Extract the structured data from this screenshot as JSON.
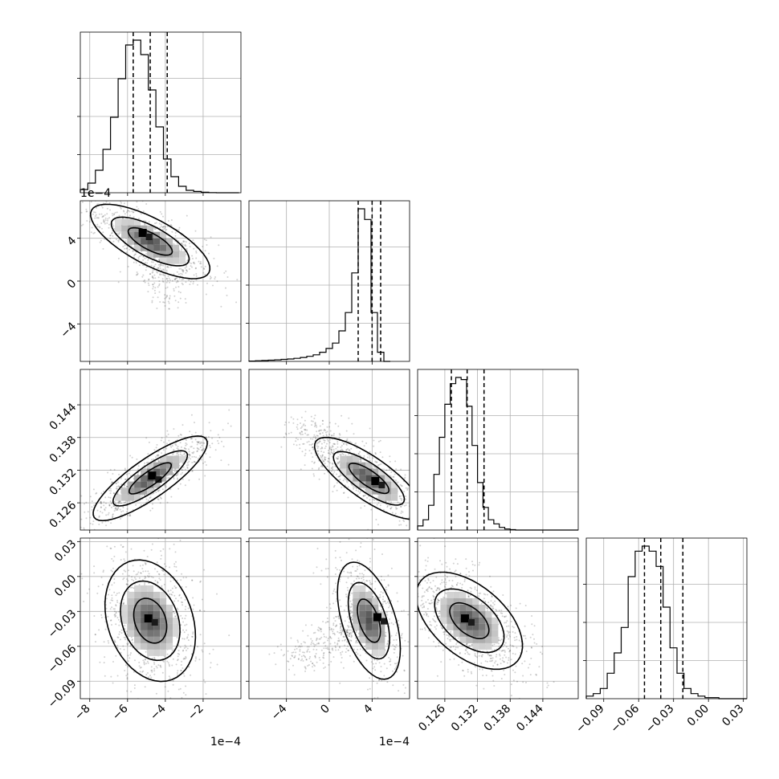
{
  "chart_data": {
    "type": "corner",
    "grid": true,
    "parameters": [
      {
        "range": [
          -0.00085,
          0.0
        ],
        "ticks": [
          -0.0008,
          -0.0006,
          -0.0004,
          -0.0002
        ],
        "tick_labels": [
          "−8",
          "−6",
          "−4",
          "−2"
        ],
        "offset_text": "1e−4"
      },
      {
        "range": [
          -0.00075,
          0.00075
        ],
        "ticks": [
          -0.0004,
          0.0,
          0.0004
        ],
        "tick_labels": [
          "−4",
          "0",
          "4"
        ],
        "offset_text": "1e−4"
      },
      {
        "range": [
          0.121,
          0.1505
        ],
        "ticks": [
          0.126,
          0.132,
          0.138,
          0.144
        ],
        "tick_labels": [
          "0.126",
          "0.132",
          "0.138",
          "0.144"
        ],
        "offset_text": ""
      },
      {
        "range": [
          -0.105,
          0.033
        ],
        "ticks": [
          -0.09,
          -0.06,
          -0.03,
          0.0,
          0.03
        ],
        "tick_labels": [
          "−0.09",
          "−0.06",
          "−0.03",
          "0.00",
          "0.03"
        ],
        "offset_text": ""
      }
    ],
    "marginal_histograms": [
      {
        "bin_start": -0.00085,
        "bin_width": 4e-05,
        "counts": [
          2,
          6,
          14,
          27,
          47,
          71,
          92,
          95,
          86,
          64,
          41,
          21,
          10,
          4,
          1.5,
          0.8,
          0.3,
          0.1,
          0,
          0,
          0
        ],
        "quantiles": [
          -0.00057,
          -0.00048,
          -0.00039
        ]
      },
      {
        "bin_start": -0.00075,
        "bin_width": 6e-05,
        "counts": [
          0.2,
          0.4,
          0.6,
          0.8,
          1,
          1.3,
          1.6,
          2,
          2.6,
          3.3,
          4.3,
          6,
          8.5,
          12,
          20,
          32,
          58,
          100,
          93,
          32,
          6,
          0
        ],
        "quantiles": [
          0.00027,
          0.0004,
          0.00048
        ]
      },
      {
        "bin_start": 0.121,
        "bin_width": 0.001,
        "counts": [
          2,
          5,
          12,
          27,
          45,
          61,
          71,
          74,
          73,
          60,
          41,
          23,
          11,
          5,
          3,
          1.3,
          0.5,
          0.2,
          0,
          0,
          0,
          0,
          0,
          0,
          0,
          0,
          0,
          0,
          0,
          0
        ],
        "quantiles": [
          0.1272,
          0.1301,
          0.1332
        ]
      },
      {
        "bin_start": -0.105,
        "bin_width": 0.006,
        "counts": [
          0.5,
          1,
          2,
          5,
          9,
          14,
          24,
          29,
          30,
          29,
          26,
          18,
          10,
          5,
          2,
          1,
          0.5,
          0.2,
          0.2,
          0,
          0,
          0,
          0
        ],
        "quantiles": [
          -0.055,
          -0.041,
          -0.022
        ]
      }
    ],
    "joint_distributions": [
      {
        "x_param": 0,
        "y_param": 1,
        "center": [
          -0.00048,
          0.00037
        ],
        "peak": [
          -0.00052,
          0.00045
        ]
      },
      {
        "x_param": 0,
        "y_param": 2,
        "center": [
          -0.00048,
          0.1305
        ],
        "peak": [
          -0.00047,
          0.131
        ]
      },
      {
        "x_param": 1,
        "y_param": 2,
        "center": [
          0.00037,
          0.1305
        ],
        "peak": [
          0.00043,
          0.13
        ]
      },
      {
        "x_param": 0,
        "y_param": 3,
        "center": [
          -0.00048,
          -0.038
        ],
        "peak": [
          -0.00049,
          -0.036
        ]
      },
      {
        "x_param": 1,
        "y_param": 3,
        "center": [
          0.00037,
          -0.038
        ],
        "peak": [
          0.00045,
          -0.035
        ]
      },
      {
        "x_param": 2,
        "y_param": 3,
        "center": [
          0.1305,
          -0.038
        ],
        "peak": [
          0.1297,
          -0.036
        ]
      }
    ]
  }
}
